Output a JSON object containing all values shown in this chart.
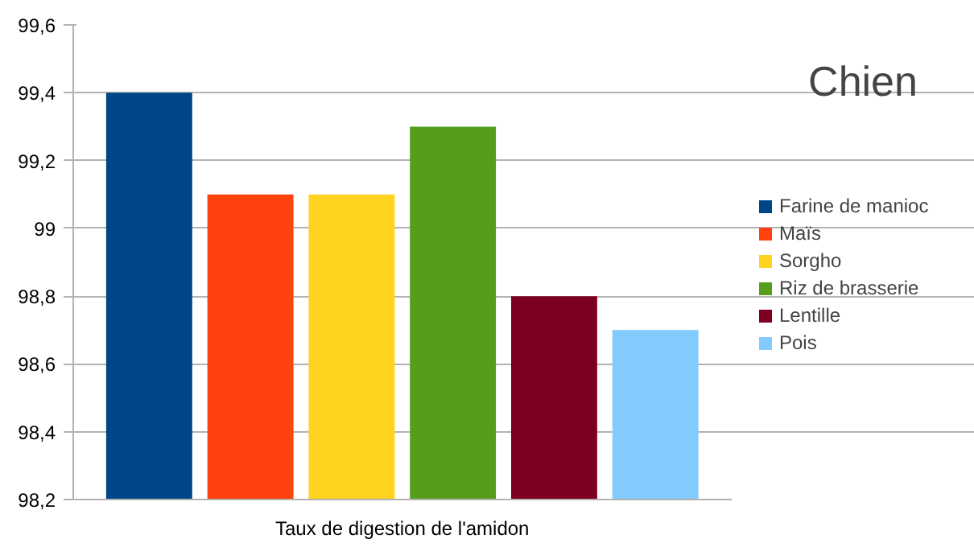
{
  "chart_data": {
    "type": "bar",
    "title": "Chien",
    "categories": [
      "Taux de digestion de l'amidon"
    ],
    "series": [
      {
        "name": "Farine de manioc",
        "color": "#004586",
        "values": [
          99.4
        ]
      },
      {
        "name": "Maïs",
        "color": "#ff420e",
        "values": [
          99.1
        ]
      },
      {
        "name": "Sorgho",
        "color": "#ffd320",
        "values": [
          99.1
        ]
      },
      {
        "name": "Riz de brasserie",
        "color": "#579d1c",
        "values": [
          99.3
        ]
      },
      {
        "name": "Lentille",
        "color": "#7e0021",
        "values": [
          98.8
        ]
      },
      {
        "name": "Pois",
        "color": "#83caff",
        "values": [
          98.7
        ]
      }
    ],
    "ylim": [
      98.2,
      99.6
    ],
    "yticks": [
      {
        "value": 98.2,
        "label": "98,2"
      },
      {
        "value": 98.4,
        "label": "98,4"
      },
      {
        "value": 98.6,
        "label": "98,6"
      },
      {
        "value": 98.8,
        "label": "98,8"
      },
      {
        "value": 99,
        "label": "99"
      },
      {
        "value": 99.2,
        "label": "99,2"
      },
      {
        "value": 99.4,
        "label": "99,4"
      },
      {
        "value": 99.6,
        "label": "99,6"
      }
    ],
    "grid": "y",
    "legend": "right"
  }
}
